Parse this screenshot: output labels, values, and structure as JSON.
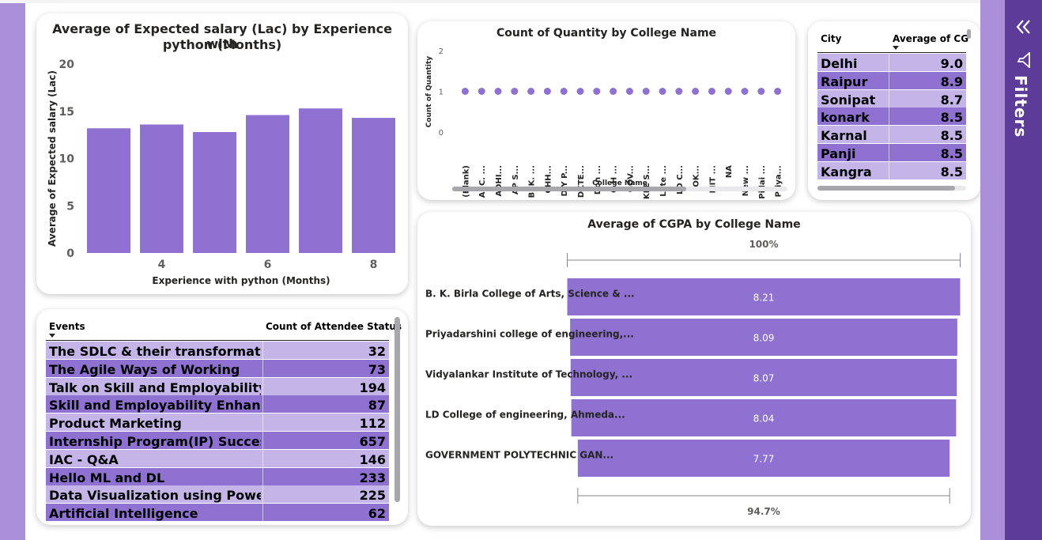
{
  "colors": {
    "page_bg": "#a98fd8",
    "bar": "#8e71d0",
    "row_light": "#c4b4e8",
    "row_dark": "#8e71d0",
    "filters_bg": "#5c3b99"
  },
  "salary_chart": {
    "title": "Average of Expected salary (Lac) by Experience with python (Months)",
    "title_line1": "Average of Expected salary (Lac) by Experience with",
    "title_line2": "python (Months)",
    "xlabel": "Experience with python (Months)",
    "ylabel": "Average of Expected salary (Lac)",
    "y_ticks": [
      "20",
      "15",
      "10",
      "5",
      "0"
    ],
    "x_ticks": [
      "4",
      "6",
      "8"
    ]
  },
  "quantity_chart": {
    "title": "Count of Quantity by College Name",
    "xlabel": "College Name",
    "ylabel": "Count of Quantity",
    "y_ticks": [
      "2",
      "1",
      "0"
    ]
  },
  "city_table": {
    "col1": "City",
    "col2": "Average of CGP.",
    "rows": [
      {
        "city": "Delhi",
        "value": "9.0"
      },
      {
        "city": "Raipur",
        "value": "8.9"
      },
      {
        "city": "Sonipat",
        "value": "8.7"
      },
      {
        "city": "konark",
        "value": "8.5"
      },
      {
        "city": "Karnal",
        "value": "8.5"
      },
      {
        "city": "Panji",
        "value": "8.5"
      },
      {
        "city": "Kangra",
        "value": "8.5"
      }
    ]
  },
  "cgpa_chart": {
    "title": "Average of CGPA by College Name",
    "top_label": "100%",
    "bottom_label": "94.7%"
  },
  "events_table": {
    "col1": "Events",
    "col2": "Count of Attendee Status",
    "rows": [
      {
        "event": "The SDLC & their transformations",
        "count": "32"
      },
      {
        "event": "The Agile Ways of Working",
        "count": "73"
      },
      {
        "event": "Talk on Skill and Employability Enhancement",
        "count": "194"
      },
      {
        "event": "Skill and Employability Enhancement",
        "count": "87"
      },
      {
        "event": "Product Marketing",
        "count": "112"
      },
      {
        "event": "Internship Program(IP) Success Conclave",
        "count": "657"
      },
      {
        "event": "IAC - Q&A",
        "count": "146"
      },
      {
        "event": "Hello ML and DL",
        "count": "233"
      },
      {
        "event": "Data Visualization using Power BI",
        "count": "225"
      },
      {
        "event": "Artificial Intelligence",
        "count": "62"
      }
    ]
  },
  "filters": {
    "label": "Filters",
    "collapse_icon": "double-chevron-left-icon",
    "filter_icon": "funnel-icon"
  },
  "chart_data": [
    {
      "type": "bar",
      "title": "Average of Expected salary (Lac) by Experience with python (Months)",
      "xlabel": "Experience with python (Months)",
      "ylabel": "Average of Expected salary (Lac)",
      "categories": [
        "3",
        "4",
        "5",
        "6",
        "7",
        "8"
      ],
      "values": [
        13.2,
        13.6,
        12.8,
        14.6,
        15.3,
        14.3
      ],
      "ylim": [
        0,
        20
      ],
      "x_ticks_shown": [
        "4",
        "6",
        "8"
      ],
      "grid": false
    },
    {
      "type": "scatter",
      "title": "Count of Quantity by College Name",
      "xlabel": "College Name",
      "ylabel": "Count of Quantity",
      "categories": [
        "(Blank)",
        "A. C. ...",
        "ADHI...",
        "AP S...",
        "B. K. ...",
        "CHH...",
        "D Y P...",
        "DKTE...",
        "Don ...",
        "G H ...",
        "GOV...",
        "KLE S...",
        "Late ...",
        "LD C...",
        "LOK...",
        "MIT ...",
        "NA",
        "New ...",
        "Pillai ...",
        "Priya..."
      ],
      "values": [
        1,
        1,
        1,
        1,
        1,
        1,
        1,
        1,
        1,
        1,
        1,
        1,
        1,
        1,
        1,
        1,
        1,
        1,
        1,
        1
      ],
      "ylim": [
        0,
        2
      ]
    },
    {
      "type": "bar",
      "orientation": "horizontal",
      "title": "Average of CGPA by College Name",
      "categories": [
        "B. K. Birla College of Arts, Science & ...",
        "Priyadarshini college of engineering,...",
        "Vidyalankar Institute of Technology, ...",
        "LD College of engineering, Ahmeda...",
        "GOVERNMENT POLYTECHNIC GAN..."
      ],
      "values": [
        8.21,
        8.09,
        8.07,
        8.04,
        7.77
      ]
    }
  ]
}
